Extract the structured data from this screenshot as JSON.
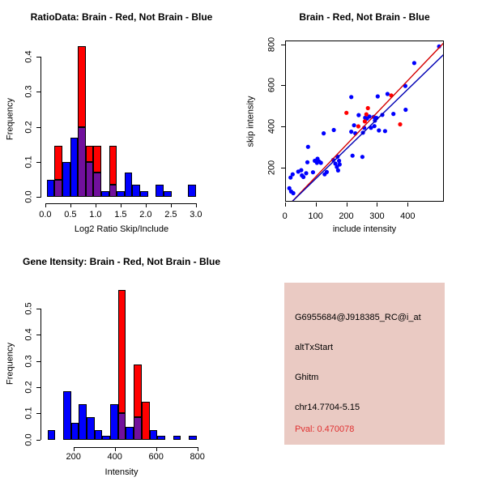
{
  "figure": {
    "background": "#ffffff",
    "legend_meaning": "Brain - Red, Not Brain - Blue"
  },
  "colors": {
    "brain_red": "#FF0000",
    "not_brain_blue": "#0000FF",
    "overlap_purple": "#71109C",
    "red_fit_line": "#D40000",
    "blue_fit_line": "#0000B4",
    "axis_black": "#000000",
    "info_bg": "#EACAC3",
    "pval_red": "#E03030"
  },
  "chart_data": [
    {
      "id": "ratio_hist",
      "type": "bar",
      "title": "RatioData: Brain - Red, Not Brain - Blue",
      "xlabel": "Log2 Ratio Skip/Include",
      "ylabel": "Frequency",
      "xtick_vals": [
        0,
        0.5,
        1.0,
        1.5,
        2.0,
        2.5,
        3.0
      ],
      "xtick_labels": [
        "0.0",
        "0.5",
        "1.0",
        "1.5",
        "2.0",
        "2.5",
        "3.0"
      ],
      "ytick_vals": [
        0,
        0.1,
        0.2,
        0.3,
        0.4
      ],
      "ytick_labels": [
        "0.0",
        "0.1",
        "0.2",
        "0.3",
        "0.4"
      ],
      "xlim": [
        0,
        3.05
      ],
      "ylim": [
        0,
        0.44
      ],
      "bin_width": 0.155,
      "overlap_color": "#71109C",
      "series": [
        {
          "name": "brain",
          "legend": "Brain - Red",
          "color": "#FF0000",
          "bars": [
            {
              "x0": 0.185,
              "h": 0.145
            },
            {
              "x0": 0.65,
              "h": 0.43
            },
            {
              "x0": 0.805,
              "h": 0.145
            },
            {
              "x0": 0.96,
              "h": 0.145
            },
            {
              "x0": 1.27,
              "h": 0.145
            }
          ]
        },
        {
          "name": "not_brain",
          "legend": "Not Brain - Blue",
          "color": "#0000FF",
          "bars": [
            {
              "x0": 0.03,
              "h": 0.05
            },
            {
              "x0": 0.185,
              "h": 0.05
            },
            {
              "x0": 0.34,
              "h": 0.1
            },
            {
              "x0": 0.495,
              "h": 0.17
            },
            {
              "x0": 0.65,
              "h": 0.2
            },
            {
              "x0": 0.805,
              "h": 0.1
            },
            {
              "x0": 0.96,
              "h": 0.07
            },
            {
              "x0": 1.115,
              "h": 0.017
            },
            {
              "x0": 1.27,
              "h": 0.035
            },
            {
              "x0": 1.425,
              "h": 0.017
            },
            {
              "x0": 1.58,
              "h": 0.07
            },
            {
              "x0": 1.735,
              "h": 0.035
            },
            {
              "x0": 1.89,
              "h": 0.017
            },
            {
              "x0": 2.2,
              "h": 0.035
            },
            {
              "x0": 2.355,
              "h": 0.017
            },
            {
              "x0": 2.845,
              "h": 0.035
            }
          ]
        }
      ]
    },
    {
      "id": "intensity_scatter",
      "type": "scatter",
      "title": "Brain - Red, Not Brain - Blue",
      "xlabel": "include intensity",
      "ylabel": "skip intensity",
      "xtick_vals": [
        0,
        100,
        200,
        300,
        400
      ],
      "xtick_labels": [
        "0",
        "100",
        "200",
        "300",
        "400"
      ],
      "ytick_vals": [
        200,
        400,
        600,
        800
      ],
      "ytick_labels": [
        "200",
        "400",
        "600",
        "800"
      ],
      "xlim": [
        0,
        519
      ],
      "ylim": [
        31,
        822
      ],
      "series": [
        {
          "name": "brain",
          "legend": "Brain - Red",
          "color": "#FF0000",
          "points": [
            [
              197,
              470
            ],
            [
              236,
              404
            ],
            [
              257,
              428
            ],
            [
              262,
              463
            ],
            [
              267,
              493
            ],
            [
              343,
              555
            ],
            [
              372,
              414
            ]
          ]
        },
        {
          "name": "not_brain",
          "legend": "Not Brain - Blue",
          "color": "#0000FF",
          "points": [
            [
              11,
              102
            ],
            [
              17,
              86
            ],
            [
              24,
              78
            ],
            [
              15,
              154
            ],
            [
              22,
              170
            ],
            [
              40,
              183
            ],
            [
              50,
              190
            ],
            [
              52,
              165
            ],
            [
              57,
              157
            ],
            [
              66,
              175
            ],
            [
              70,
              229
            ],
            [
              72,
              304
            ],
            [
              88,
              180
            ],
            [
              94,
              236
            ],
            [
              101,
              226
            ],
            [
              103,
              246
            ],
            [
              108,
              233
            ],
            [
              114,
              226
            ],
            [
              123,
              370
            ],
            [
              126,
              170
            ],
            [
              133,
              181
            ],
            [
              154,
              240
            ],
            [
              156,
              386
            ],
            [
              161,
              222
            ],
            [
              166,
              206
            ],
            [
              168,
              256
            ],
            [
              170,
              189
            ],
            [
              173,
              236
            ],
            [
              175,
              218
            ],
            [
              213,
              378
            ],
            [
              217,
              261
            ],
            [
              222,
              409
            ],
            [
              226,
              370
            ],
            [
              237,
              459
            ],
            [
              249,
              255
            ],
            [
              251,
              373
            ],
            [
              255,
              397
            ],
            [
              258,
              446
            ],
            [
              264,
              442
            ],
            [
              272,
              452
            ],
            [
              277,
              397
            ],
            [
              286,
              450
            ],
            [
              290,
              432
            ],
            [
              295,
              445
            ],
            [
              288,
              405
            ],
            [
              299,
              550
            ],
            [
              303,
              384
            ],
            [
              213,
              547
            ],
            [
              314,
              460
            ],
            [
              323,
              381
            ],
            [
              331,
              562
            ],
            [
              350,
              465
            ],
            [
              390,
              485
            ],
            [
              389,
              601
            ],
            [
              418,
              713
            ],
            [
              499,
              794
            ]
          ]
        }
      ],
      "lines": [
        {
          "name": "brain-fit-line",
          "color": "#D40000",
          "pts": [
            [
              16,
              31
            ],
            [
              519,
              819
            ]
          ]
        },
        {
          "name": "not-brain-fit-line",
          "color": "#0000B4",
          "pts": [
            [
              16,
              31
            ],
            [
              519,
              762
            ]
          ]
        }
      ]
    },
    {
      "id": "gene_hist",
      "type": "bar",
      "title": "Gene Itensity: Brain - Red, Not Brain - Blue",
      "xlabel": "Intensity",
      "ylabel": "Frequency",
      "xtick_vals": [
        200,
        400,
        600,
        800
      ],
      "xtick_labels": [
        "200",
        "400",
        "600",
        "800"
      ],
      "ytick_vals": [
        0,
        0.1,
        0.2,
        0.3,
        0.4,
        0.5
      ],
      "ytick_labels": [
        "0.0",
        "0.1",
        "0.2",
        "0.3",
        "0.4",
        "0.5"
      ],
      "xlim": [
        58,
        820
      ],
      "ylim": [
        0,
        0.585
      ],
      "bin_width": 38,
      "overlap_color": "#71109C",
      "series": [
        {
          "name": "brain",
          "legend": "Brain - Red",
          "color": "#FF0000",
          "bars": [
            {
              "x0": 416,
              "h": 0.57
            },
            {
              "x0": 492,
              "h": 0.285
            },
            {
              "x0": 530,
              "h": 0.145
            }
          ]
        },
        {
          "name": "not_brain",
          "legend": "Not Brain - Blue",
          "color": "#0000FF",
          "bars": [
            {
              "x0": 74,
              "h": 0.035
            },
            {
              "x0": 150,
              "h": 0.185
            },
            {
              "x0": 188,
              "h": 0.065
            },
            {
              "x0": 226,
              "h": 0.135
            },
            {
              "x0": 264,
              "h": 0.085
            },
            {
              "x0": 302,
              "h": 0.035
            },
            {
              "x0": 340,
              "h": 0.015
            },
            {
              "x0": 378,
              "h": 0.135
            },
            {
              "x0": 416,
              "h": 0.1
            },
            {
              "x0": 454,
              "h": 0.05
            },
            {
              "x0": 492,
              "h": 0.085
            },
            {
              "x0": 568,
              "h": 0.035
            },
            {
              "x0": 606,
              "h": 0.015
            },
            {
              "x0": 682,
              "h": 0.015
            },
            {
              "x0": 758,
              "h": 0.015
            }
          ]
        }
      ]
    }
  ],
  "info_box": {
    "bg": "#EACAC3",
    "lines": [
      {
        "text": "G6955684@J918385_RC@i_at",
        "color": "#000000"
      },
      {
        "text": "altTxStart",
        "color": "#000000"
      },
      {
        "text": "Ghitm",
        "color": "#000000"
      },
      {
        "text": "chr14.7704-5.15",
        "color": "#000000"
      },
      {
        "text": "Pval: 0.470078",
        "color": "#E03030"
      }
    ]
  }
}
